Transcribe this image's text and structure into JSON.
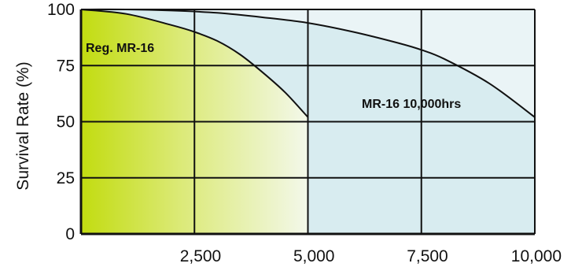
{
  "chart_data": {
    "type": "area",
    "title": "",
    "xlabel": "",
    "ylabel": "Survival Rate (%)",
    "xlim": [
      0,
      10000
    ],
    "ylim": [
      0,
      100
    ],
    "grid": true,
    "x_ticks": [
      2500,
      5000,
      7500,
      10000
    ],
    "x_tick_labels": [
      "2,500",
      "5,000",
      "7,500",
      "10,000"
    ],
    "y_ticks": [
      0,
      25,
      50,
      75,
      100
    ],
    "y_tick_labels": [
      "0",
      "25",
      "50",
      "75",
      "100"
    ],
    "series": [
      {
        "name": "Reg. MR-16",
        "color": "#c6e01c",
        "x": [
          0,
          1000,
          2000,
          2500,
          3000,
          3500,
          4000,
          4500,
          5000
        ],
        "y": [
          100,
          98,
          93,
          90,
          86,
          80,
          72,
          63,
          52
        ]
      },
      {
        "name": "MR-16 10,000hrs",
        "color": "#d8ecf0",
        "x": [
          0,
          1000,
          2000,
          3000,
          4000,
          5000,
          6000,
          7000,
          7500,
          8000,
          9000,
          10000
        ],
        "y": [
          100,
          100,
          99.5,
          98.5,
          96.5,
          94,
          90,
          85,
          82,
          78,
          67,
          52
        ]
      }
    ]
  }
}
